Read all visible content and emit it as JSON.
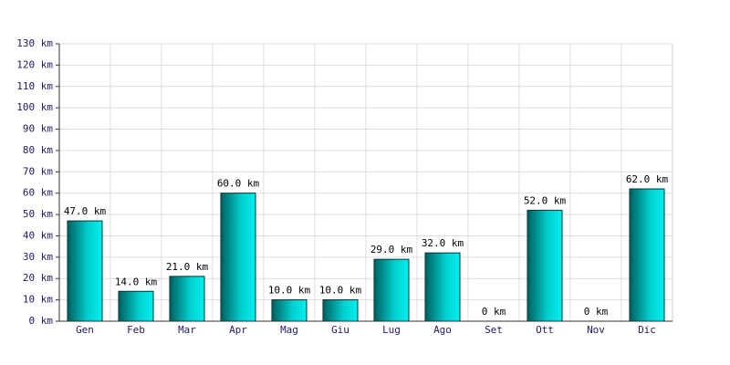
{
  "chart_data": {
    "type": "bar",
    "categories": [
      "Gen",
      "Feb",
      "Mar",
      "Apr",
      "Mag",
      "Giu",
      "Lug",
      "Ago",
      "Set",
      "Ott",
      "Nov",
      "Dic"
    ],
    "values": [
      47,
      14,
      21,
      60,
      10,
      10,
      29,
      32,
      0,
      52,
      0,
      62
    ],
    "value_labels": [
      "47.0 km",
      "14.0 km",
      "21.0 km",
      "60.0 km",
      "10.0 km",
      "10.0 km",
      "29.0 km",
      "32.0 km",
      "0 km",
      "52.0 km",
      "0 km",
      "62.0 km"
    ],
    "color": "#00d0d0",
    "ylim": [
      0,
      130
    ],
    "yticks": [
      {
        "value": 0,
        "label": "0 km"
      },
      {
        "value": 10,
        "label": "10 km"
      },
      {
        "value": 20,
        "label": "20 km"
      },
      {
        "value": 30,
        "label": "30 km"
      },
      {
        "value": 40,
        "label": "40 km"
      },
      {
        "value": 50,
        "label": "50 km"
      },
      {
        "value": 60,
        "label": "60 km"
      },
      {
        "value": 70,
        "label": "70 km"
      },
      {
        "value": 80,
        "label": "80 km"
      },
      {
        "value": 90,
        "label": "90 km"
      },
      {
        "value": 100,
        "label": "100 km"
      },
      {
        "value": 110,
        "label": "110 km"
      },
      {
        "value": 120,
        "label": "120 km"
      },
      {
        "value": 130,
        "label": "130 km"
      }
    ],
    "grid": true
  }
}
